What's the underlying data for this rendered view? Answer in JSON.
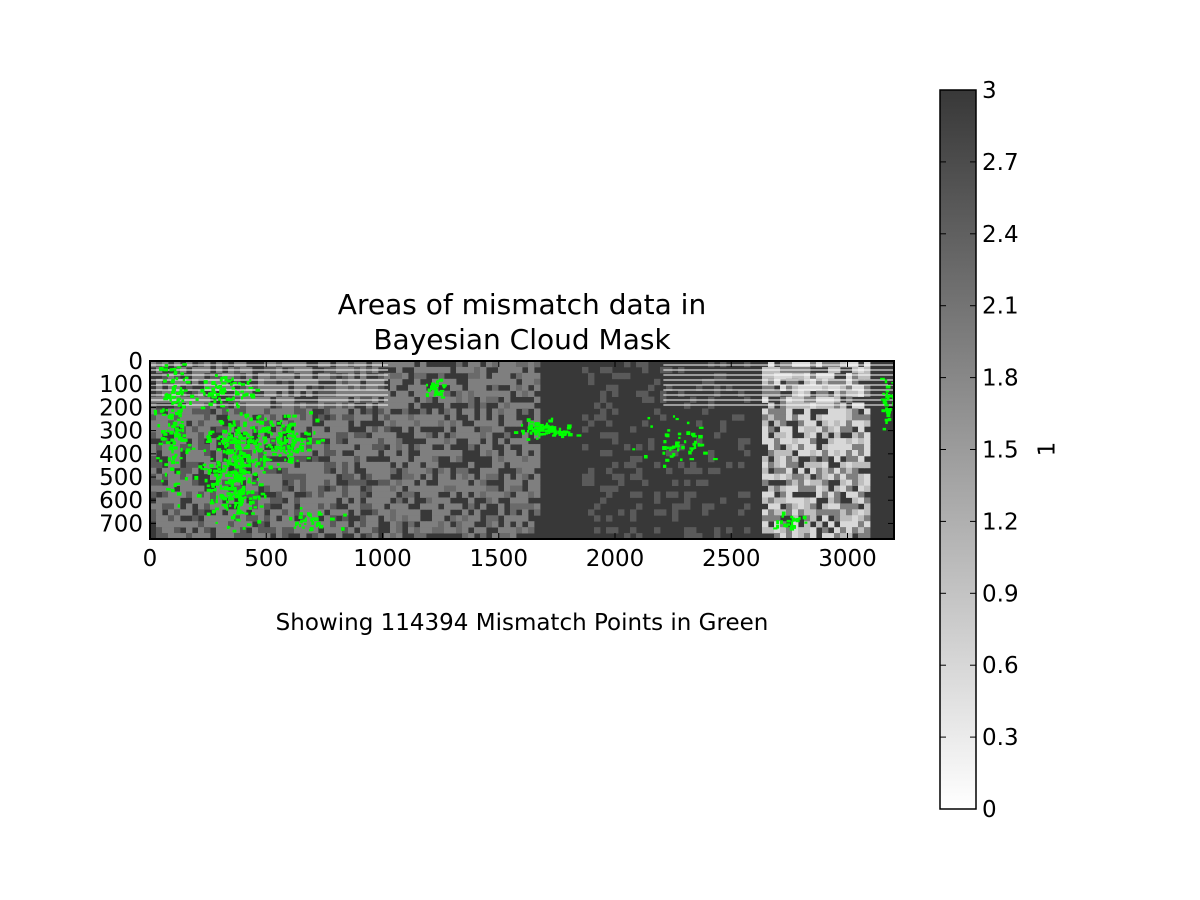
{
  "chart_data": {
    "type": "heatmap",
    "title_line1": "Areas of mismatch data in",
    "title_line2": "Bayesian Cloud Mask",
    "caption": "Showing 114394 Mismatch Points in Green",
    "mismatch_count": 114394,
    "x_ticks": [
      "0",
      "500",
      "1000",
      "1500",
      "2000",
      "2500",
      "3000"
    ],
    "x_tick_values": [
      0,
      500,
      1000,
      1500,
      2000,
      2500,
      3000
    ],
    "y_ticks": [
      "0",
      "100",
      "200",
      "300",
      "400",
      "500",
      "600",
      "700"
    ],
    "y_tick_values": [
      0,
      100,
      200,
      300,
      400,
      500,
      600,
      700
    ],
    "xlim": [
      0,
      3200
    ],
    "ylim": [
      767,
      0
    ],
    "colorbar": {
      "label": "1",
      "range": [
        0,
        3
      ],
      "ticks": [
        "0",
        "0.3",
        "0.6",
        "0.9",
        "1.2",
        "1.5",
        "1.8",
        "2.1",
        "2.4",
        "2.7",
        "3"
      ],
      "tick_values": [
        0,
        0.3,
        0.6,
        0.9,
        1.2,
        1.5,
        1.8,
        2.1,
        2.4,
        2.7,
        3
      ],
      "colormap": "gray_r"
    },
    "colors": {
      "mismatch": "#00ff00",
      "high": "#383838",
      "mid": "#7f7f7f",
      "low": "#ffffff"
    }
  }
}
